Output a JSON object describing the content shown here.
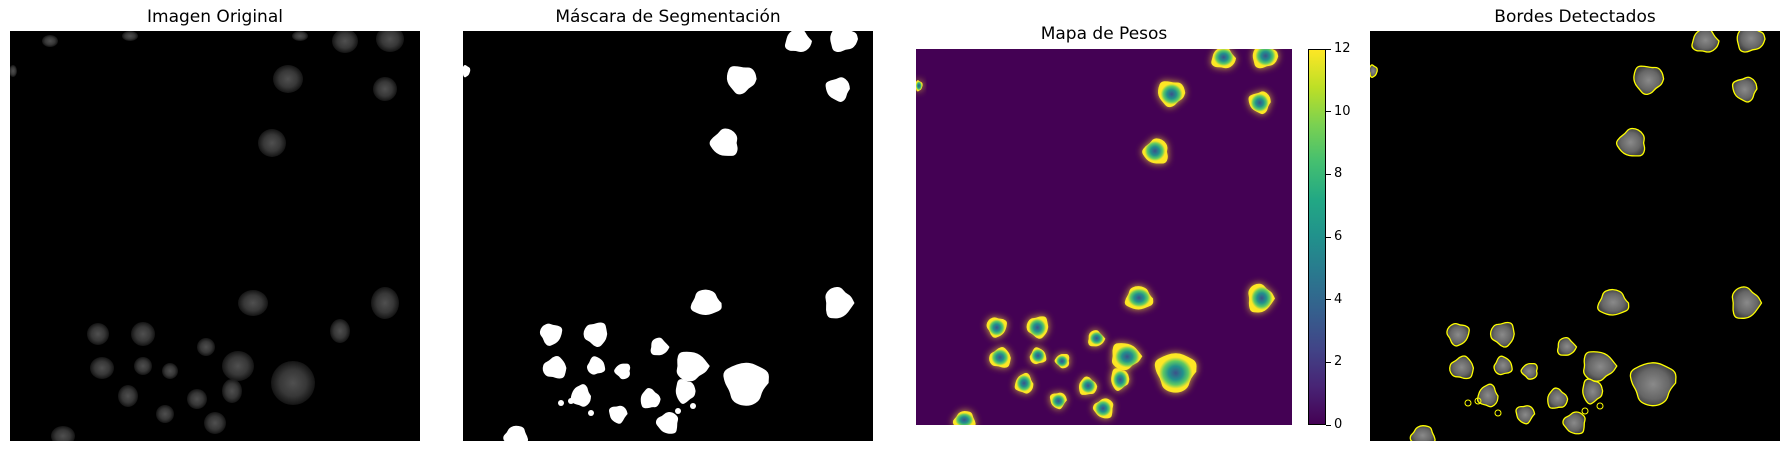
{
  "figure": {
    "panels": [
      {
        "id": "original",
        "title": "Imagen Original"
      },
      {
        "id": "mask",
        "title": "Máscara de Segmentación"
      },
      {
        "id": "weights",
        "title": "Mapa de Pesos"
      },
      {
        "id": "edges",
        "title": "Bordes Detectados"
      }
    ],
    "colorbar": {
      "min": 0,
      "max": 12,
      "ticks": [
        "0",
        "2",
        "4",
        "6",
        "8",
        "10",
        "12"
      ],
      "colormap": "viridis"
    },
    "colors": {
      "background": "#000000",
      "mask": "#ffffff",
      "edge": "#ffff00",
      "weights_low": "#440154",
      "weights_high": "#fde725"
    }
  }
}
